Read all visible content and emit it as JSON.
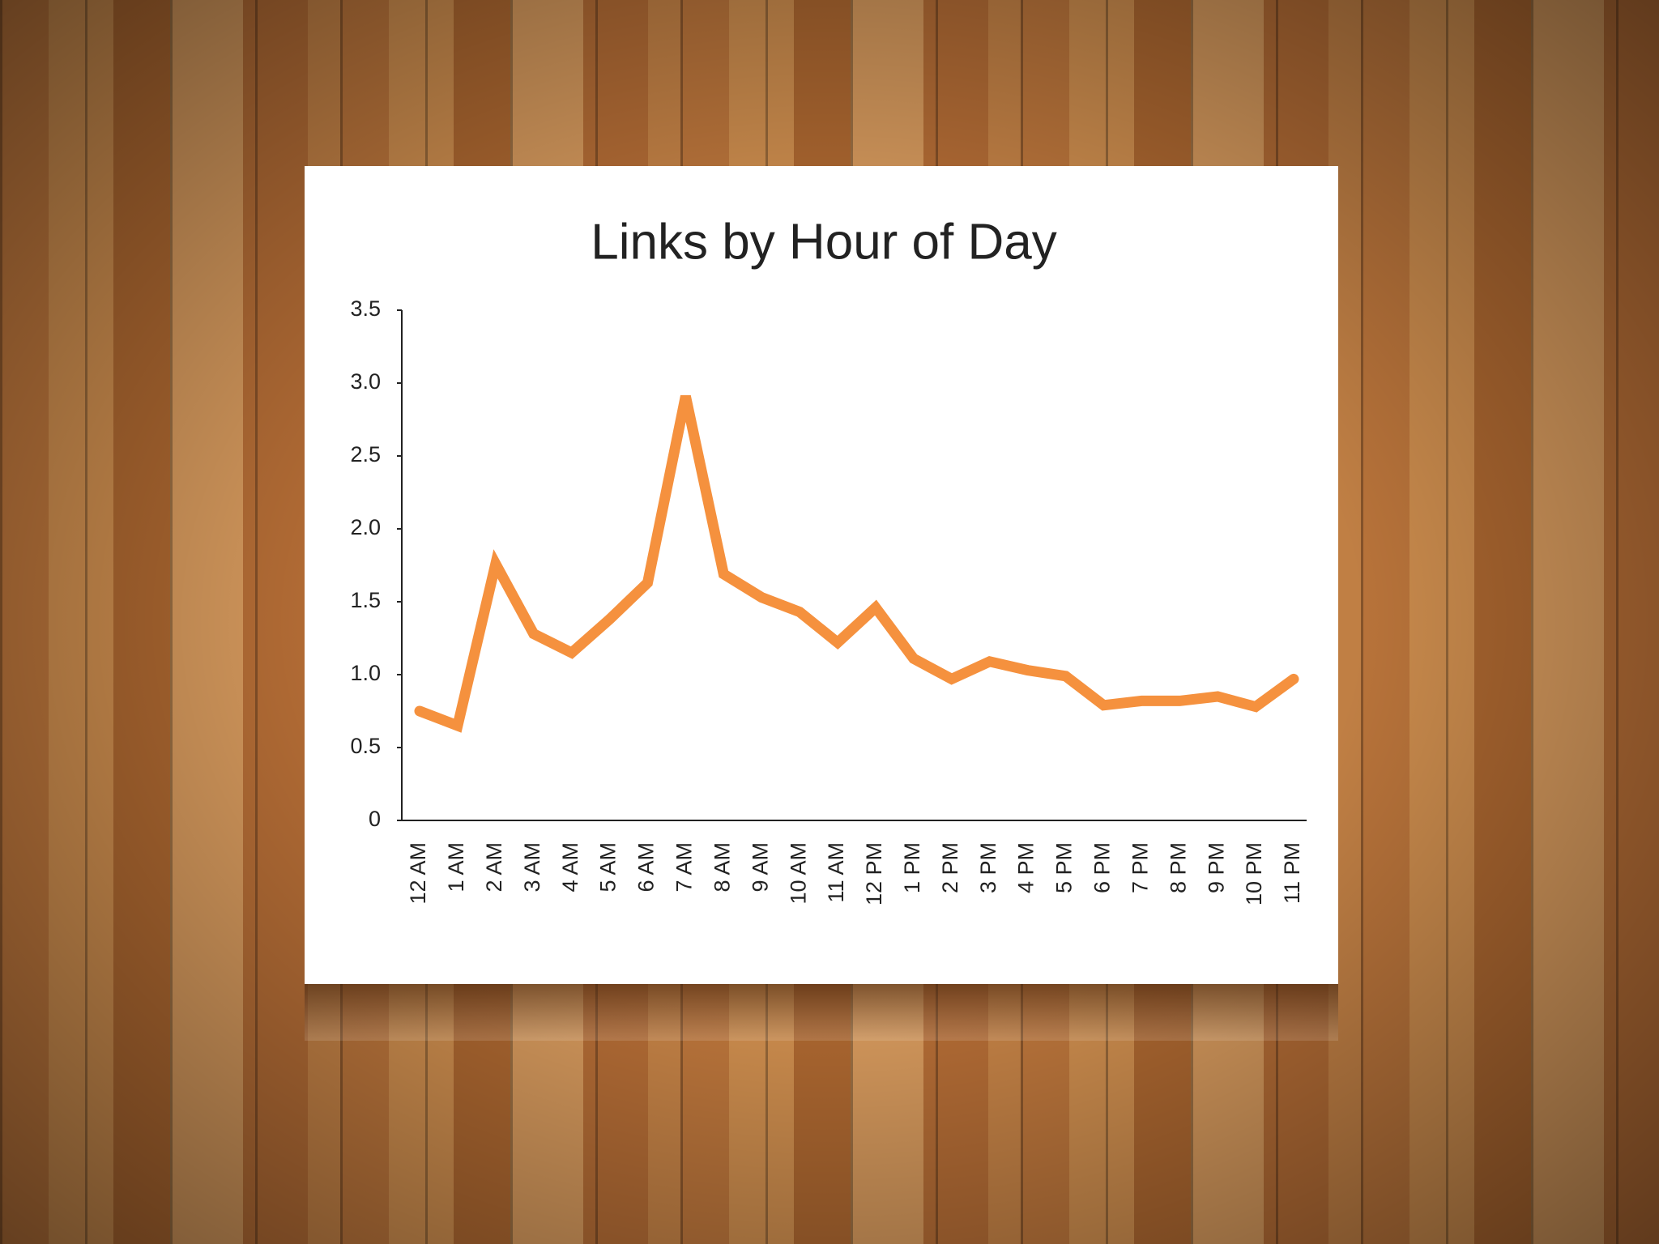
{
  "chart_data": {
    "type": "line",
    "title": "Links by Hour of Day",
    "categories": [
      "12 AM",
      "1 AM",
      "2 AM",
      "3 AM",
      "4 AM",
      "5 AM",
      "6 AM",
      "7 AM",
      "8 AM",
      "9 AM",
      "10 AM",
      "11 AM",
      "12 PM",
      "1 PM",
      "2 PM",
      "3 PM",
      "4 PM",
      "5 PM",
      "6 PM",
      "7 PM",
      "8 PM",
      "9 PM",
      "10 PM",
      "11 PM"
    ],
    "series": [
      {
        "color": "#f5913e",
        "values": [
          0.75,
          0.65,
          1.76,
          1.28,
          1.15,
          1.38,
          1.63,
          2.91,
          1.69,
          1.53,
          1.43,
          1.22,
          1.46,
          1.11,
          0.97,
          1.09,
          1.03,
          0.99,
          0.79,
          0.82,
          0.82,
          0.85,
          0.78,
          0.97
        ]
      }
    ],
    "ylim": [
      0,
      3.5
    ],
    "yticks": [
      0,
      0.5,
      {
        "value": 1,
        "label": "1.0"
      },
      1.5,
      {
        "value": 2,
        "label": "2.0"
      },
      2.5,
      {
        "value": 3,
        "label": "3.0"
      },
      3.5
    ],
    "grid": false
  }
}
